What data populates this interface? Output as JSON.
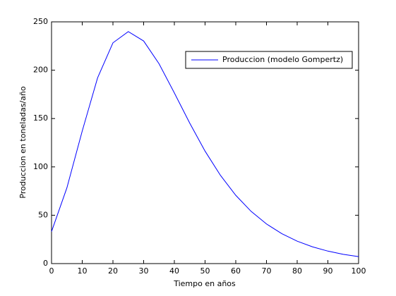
{
  "chart_data": {
    "type": "line",
    "x_label": "Tiempo en años",
    "y_label": "Produccion en toneladas/año",
    "x": [
      0,
      5,
      10,
      15,
      20,
      25,
      30,
      35,
      40,
      45,
      50,
      55,
      60,
      65,
      70,
      75,
      80,
      85,
      90,
      95,
      100
    ],
    "series": [
      {
        "name": "Produccion (modelo Gompertz)",
        "color": "#0000ff",
        "values": [
          33.1,
          78.3,
          137.1,
          192.1,
          228.3,
          239.9,
          230.2,
          206.7,
          176.5,
          145.3,
          116.3,
          91.3,
          70.6,
          54.0,
          41.0,
          30.9,
          23.2,
          17.3,
          12.9,
          9.6,
          7.2
        ]
      }
    ],
    "xlim": [
      0,
      100
    ],
    "xticks": [
      0,
      10,
      20,
      30,
      40,
      50,
      60,
      70,
      80,
      90,
      100
    ],
    "ylim": [
      0,
      250
    ],
    "yticks": [
      0,
      50,
      100,
      150,
      200,
      250
    ],
    "grid": false,
    "legend_position": "upper-right"
  }
}
